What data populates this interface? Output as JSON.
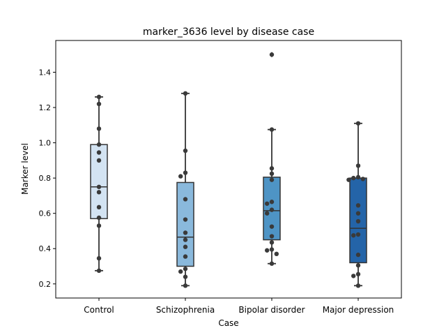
{
  "chart_data": {
    "type": "box",
    "title": "marker_3636 level by disease case",
    "xlabel": "Case",
    "ylabel": "Marker level",
    "ylim": [
      0.12,
      1.58
    ],
    "yticks": [
      0.2,
      0.4,
      0.6,
      0.8,
      1.0,
      1.2,
      1.4
    ],
    "ytick_labels": [
      "0.2",
      "0.4",
      "0.6",
      "0.8",
      "1.0",
      "1.2",
      "1.4"
    ],
    "categories": [
      "Control",
      "Schizophrenia",
      "Bipolar disorder",
      "Major depression"
    ],
    "colors": [
      "#d3e3f2",
      "#8ab9dc",
      "#4e94c5",
      "#2464a8"
    ],
    "line_color": "#333333",
    "boxes": [
      {
        "name": "Control",
        "whisker_low": 0.275,
        "q1": 0.57,
        "median": 0.75,
        "q3": 0.99,
        "whisker_high": 1.26,
        "outliers": []
      },
      {
        "name": "Schizophrenia",
        "whisker_low": 0.19,
        "q1": 0.3,
        "median": 0.465,
        "q3": 0.775,
        "whisker_high": 1.28,
        "outliers": []
      },
      {
        "name": "Bipolar disorder",
        "whisker_low": 0.315,
        "q1": 0.45,
        "median": 0.615,
        "q3": 0.805,
        "whisker_high": 1.075,
        "outliers": [
          1.5
        ]
      },
      {
        "name": "Major depression",
        "whisker_low": 0.19,
        "q1": 0.32,
        "median": 0.515,
        "q3": 0.8,
        "whisker_high": 1.11,
        "outliers": []
      }
    ],
    "points": [
      {
        "category": "Control",
        "values": [
          1.26,
          1.22,
          1.08,
          0.99,
          0.945,
          0.9,
          0.75,
          0.72,
          0.635,
          0.575,
          0.53,
          0.345,
          0.275
        ]
      },
      {
        "category": "Schizophrenia",
        "values": [
          1.28,
          0.955,
          0.83,
          0.81,
          0.68,
          0.565,
          0.49,
          0.45,
          0.41,
          0.355,
          0.285,
          0.27,
          0.24,
          0.19
        ]
      },
      {
        "category": "Bipolar disorder",
        "values": [
          1.5,
          1.075,
          0.855,
          0.825,
          0.79,
          0.665,
          0.655,
          0.62,
          0.6,
          0.525,
          0.47,
          0.435,
          0.395,
          0.39,
          0.37,
          0.315
        ]
      },
      {
        "category": "Major depression",
        "values": [
          1.11,
          0.87,
          0.805,
          0.8,
          0.795,
          0.79,
          0.645,
          0.6,
          0.555,
          0.48,
          0.475,
          0.365,
          0.305,
          0.255,
          0.245,
          0.19
        ]
      }
    ]
  }
}
